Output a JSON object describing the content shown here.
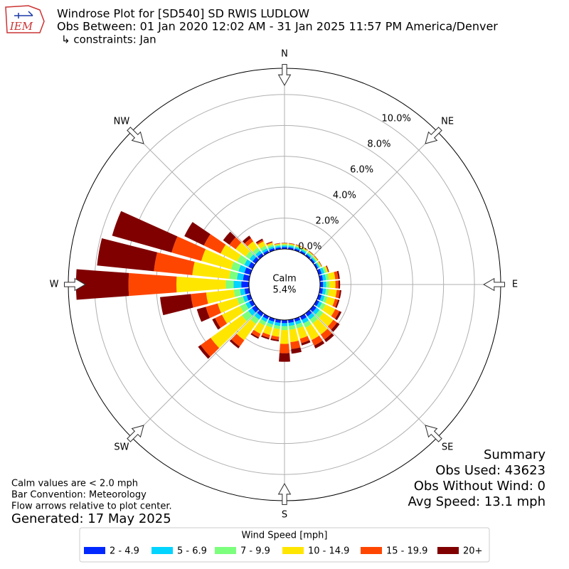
{
  "chart_data": {
    "type": "windrose",
    "title": "Windrose Plot for [SD540] SD RWIS LUDLOW",
    "subtitle": "Obs Between: 01 Jan 2020 12:02 AM - 31 Jan 2025 11:57 PM America/Denver",
    "constraints": "↳ constraints: Jan",
    "logo_text": "IEM",
    "compass_labels": [
      "N",
      "NE",
      "E",
      "SE",
      "S",
      "SW",
      "W",
      "NW"
    ],
    "calm_label": "Calm",
    "calm_value": 5.4,
    "calm_value_label": "5.4%",
    "rlim": [
      0,
      11.7
    ],
    "rticks": [
      {
        "value": 0,
        "label": "0.0%"
      },
      {
        "value": 2,
        "label": "2.0%"
      },
      {
        "value": 4,
        "label": "4.0%"
      },
      {
        "value": 6,
        "label": "6.0%"
      },
      {
        "value": 8,
        "label": "8.0%"
      },
      {
        "value": 10,
        "label": "10.0%"
      }
    ],
    "grid": true,
    "legend_title": "Wind Speed [mph]",
    "series": [
      {
        "name": "2 - 4.9",
        "color": "#0028ff",
        "values": [
          0.12,
          0.12,
          0.12,
          0.12,
          0.12,
          0.12,
          0.12,
          0.2,
          0.2,
          0.2,
          0.2,
          0.2,
          0.2,
          0.25,
          0.25,
          0.25,
          0.2,
          0.2,
          0.2,
          0.2,
          0.2,
          0.2,
          0.25,
          0.3,
          0.25,
          0.25,
          0.3,
          0.5,
          0.4,
          0.4,
          0.3,
          0.25,
          0.2,
          0.15,
          0.15,
          0.12
        ]
      },
      {
        "name": "5 - 6.9",
        "color": "#00d4ff",
        "values": [
          0.1,
          0.1,
          0.1,
          0.1,
          0.1,
          0.1,
          0.1,
          0.18,
          0.2,
          0.2,
          0.2,
          0.2,
          0.2,
          0.25,
          0.25,
          0.25,
          0.2,
          0.2,
          0.2,
          0.2,
          0.2,
          0.2,
          0.25,
          0.3,
          0.25,
          0.25,
          0.3,
          0.5,
          0.4,
          0.4,
          0.3,
          0.25,
          0.2,
          0.15,
          0.12,
          0.1
        ]
      },
      {
        "name": "7 - 9.9",
        "color": "#7cff7c",
        "values": [
          0.08,
          0.08,
          0.08,
          0.08,
          0.08,
          0.08,
          0.08,
          0.14,
          0.2,
          0.2,
          0.2,
          0.2,
          0.25,
          0.3,
          0.3,
          0.3,
          0.25,
          0.25,
          0.25,
          0.2,
          0.2,
          0.25,
          0.35,
          0.5,
          0.4,
          0.4,
          0.4,
          0.5,
          0.5,
          0.5,
          0.5,
          0.3,
          0.25,
          0.2,
          0.12,
          0.08
        ]
      },
      {
        "name": "10 - 14.9",
        "color": "#ffe600",
        "values": [
          0.06,
          0.06,
          0.06,
          0.06,
          0.06,
          0.06,
          0.06,
          0.1,
          0.4,
          0.4,
          0.5,
          0.5,
          0.7,
          0.8,
          0.9,
          0.9,
          0.7,
          0.8,
          0.9,
          0.5,
          0.5,
          0.6,
          1.3,
          2.5,
          1.3,
          1.3,
          1.8,
          3.2,
          2.4,
          2.0,
          1.2,
          0.8,
          0.5,
          0.3,
          0.12,
          0.06
        ]
      },
      {
        "name": "15 - 19.9",
        "color": "#ff4600",
        "values": [
          0.02,
          0.02,
          0.02,
          0.02,
          0.02,
          0.02,
          0.02,
          0.04,
          0.2,
          0.2,
          0.2,
          0.2,
          0.3,
          0.3,
          0.4,
          0.4,
          0.3,
          0.45,
          0.6,
          0.2,
          0.2,
          0.25,
          0.5,
          0.8,
          0.5,
          0.8,
          1.0,
          3.1,
          2.5,
          2.0,
          1.2,
          0.5,
          0.25,
          0.1,
          0.05,
          0.02
        ]
      },
      {
        "name": "20+",
        "color": "#800000",
        "values": [
          0.02,
          0.02,
          0.02,
          0.02,
          0.02,
          0.02,
          0.02,
          0.04,
          0.1,
          0.1,
          0.1,
          0.1,
          0.15,
          0.2,
          0.2,
          0.2,
          0.15,
          0.3,
          0.55,
          0.1,
          0.1,
          0.1,
          0.15,
          0.2,
          0.2,
          0.6,
          2.0,
          3.4,
          3.7,
          4.0,
          1.4,
          0.5,
          0.2,
          0.1,
          0.04,
          0.02
        ]
      }
    ],
    "notes": [
      "Calm values are < 2.0 mph",
      "Bar Convention: Meteorology",
      "Flow arrows relative to plot center."
    ],
    "generated": "Generated: 17 May 2025",
    "summary": [
      "Summary",
      "Obs Used: 43623",
      "Obs Without Wind: 0",
      "Avg Speed: 13.1 mph"
    ]
  }
}
